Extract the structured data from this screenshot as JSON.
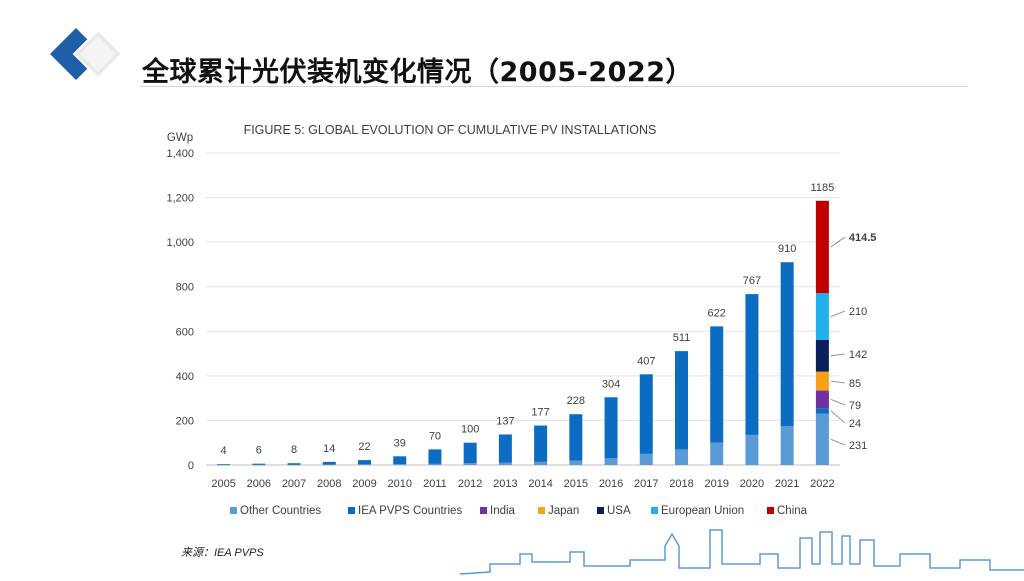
{
  "slide": {
    "title": "全球累计光伏装机变化情况（2005-2022）",
    "source": "来源：IEA PVPS"
  },
  "colors": {
    "other": "#5b9bd5",
    "iea": "#0c6cc4",
    "india": "#7030a0",
    "japan": "#f7a11a",
    "usa": "#0b1f5c",
    "eu": "#1fb1e8",
    "china": "#c00000",
    "logo_dark": "#1f5ea8",
    "logo_light": "#e9e9e9"
  },
  "icons": {
    "logo": "diamond-logo-icon",
    "skyline": "city-skyline-icon"
  },
  "chart_data": {
    "type": "bar",
    "title": "FIGURE 5: GLOBAL EVOLUTION OF CUMULATIVE PV INSTALLATIONS",
    "ylabel": "GWp",
    "xlabel": "",
    "ylim": [
      0,
      1400
    ],
    "yticks": [
      0,
      200,
      400,
      600,
      800,
      1000,
      1200,
      1400
    ],
    "ytick_labels": [
      "0",
      "200",
      "400",
      "600",
      "800",
      "1,000",
      "1,200",
      "1,400"
    ],
    "categories": [
      "2005",
      "2006",
      "2007",
      "2008",
      "2009",
      "2010",
      "2011",
      "2012",
      "2013",
      "2014",
      "2015",
      "2016",
      "2017",
      "2018",
      "2019",
      "2020",
      "2021"
    ],
    "totals": [
      4,
      6,
      8,
      14,
      22,
      39,
      70,
      100,
      137,
      177,
      228,
      304,
      407,
      511,
      622,
      767,
      910
    ],
    "series": [
      {
        "name": "Other Countries",
        "values": [
          1,
          1,
          1,
          2,
          3,
          4,
          5,
          8,
          10,
          14,
          20,
          30,
          50,
          70,
          100,
          135,
          175
        ]
      },
      {
        "name": "IEA PVPS Countries",
        "values": [
          3,
          5,
          7,
          12,
          19,
          35,
          65,
          92,
          127,
          163,
          208,
          274,
          357,
          441,
          522,
          632,
          735
        ]
      }
    ],
    "stacked_2022": {
      "category": "2022",
      "total_label": "1185",
      "segments": [
        {
          "name": "Other Countries",
          "value": 231,
          "label": "231"
        },
        {
          "name": "IEA PVPS Countries",
          "value": 24,
          "label": "24"
        },
        {
          "name": "India",
          "value": 79,
          "label": "79"
        },
        {
          "name": "Japan",
          "value": 85,
          "label": "85"
        },
        {
          "name": "USA",
          "value": 142,
          "label": "142"
        },
        {
          "name": "European Union",
          "value": 210,
          "label": "210"
        },
        {
          "name": "China",
          "value": 414.5,
          "label": "414.5"
        }
      ]
    },
    "legend": [
      "Other Countries",
      "IEA PVPS Countries",
      "India",
      "Japan",
      "USA",
      "European Union",
      "China"
    ],
    "legend_position": "bottom"
  }
}
